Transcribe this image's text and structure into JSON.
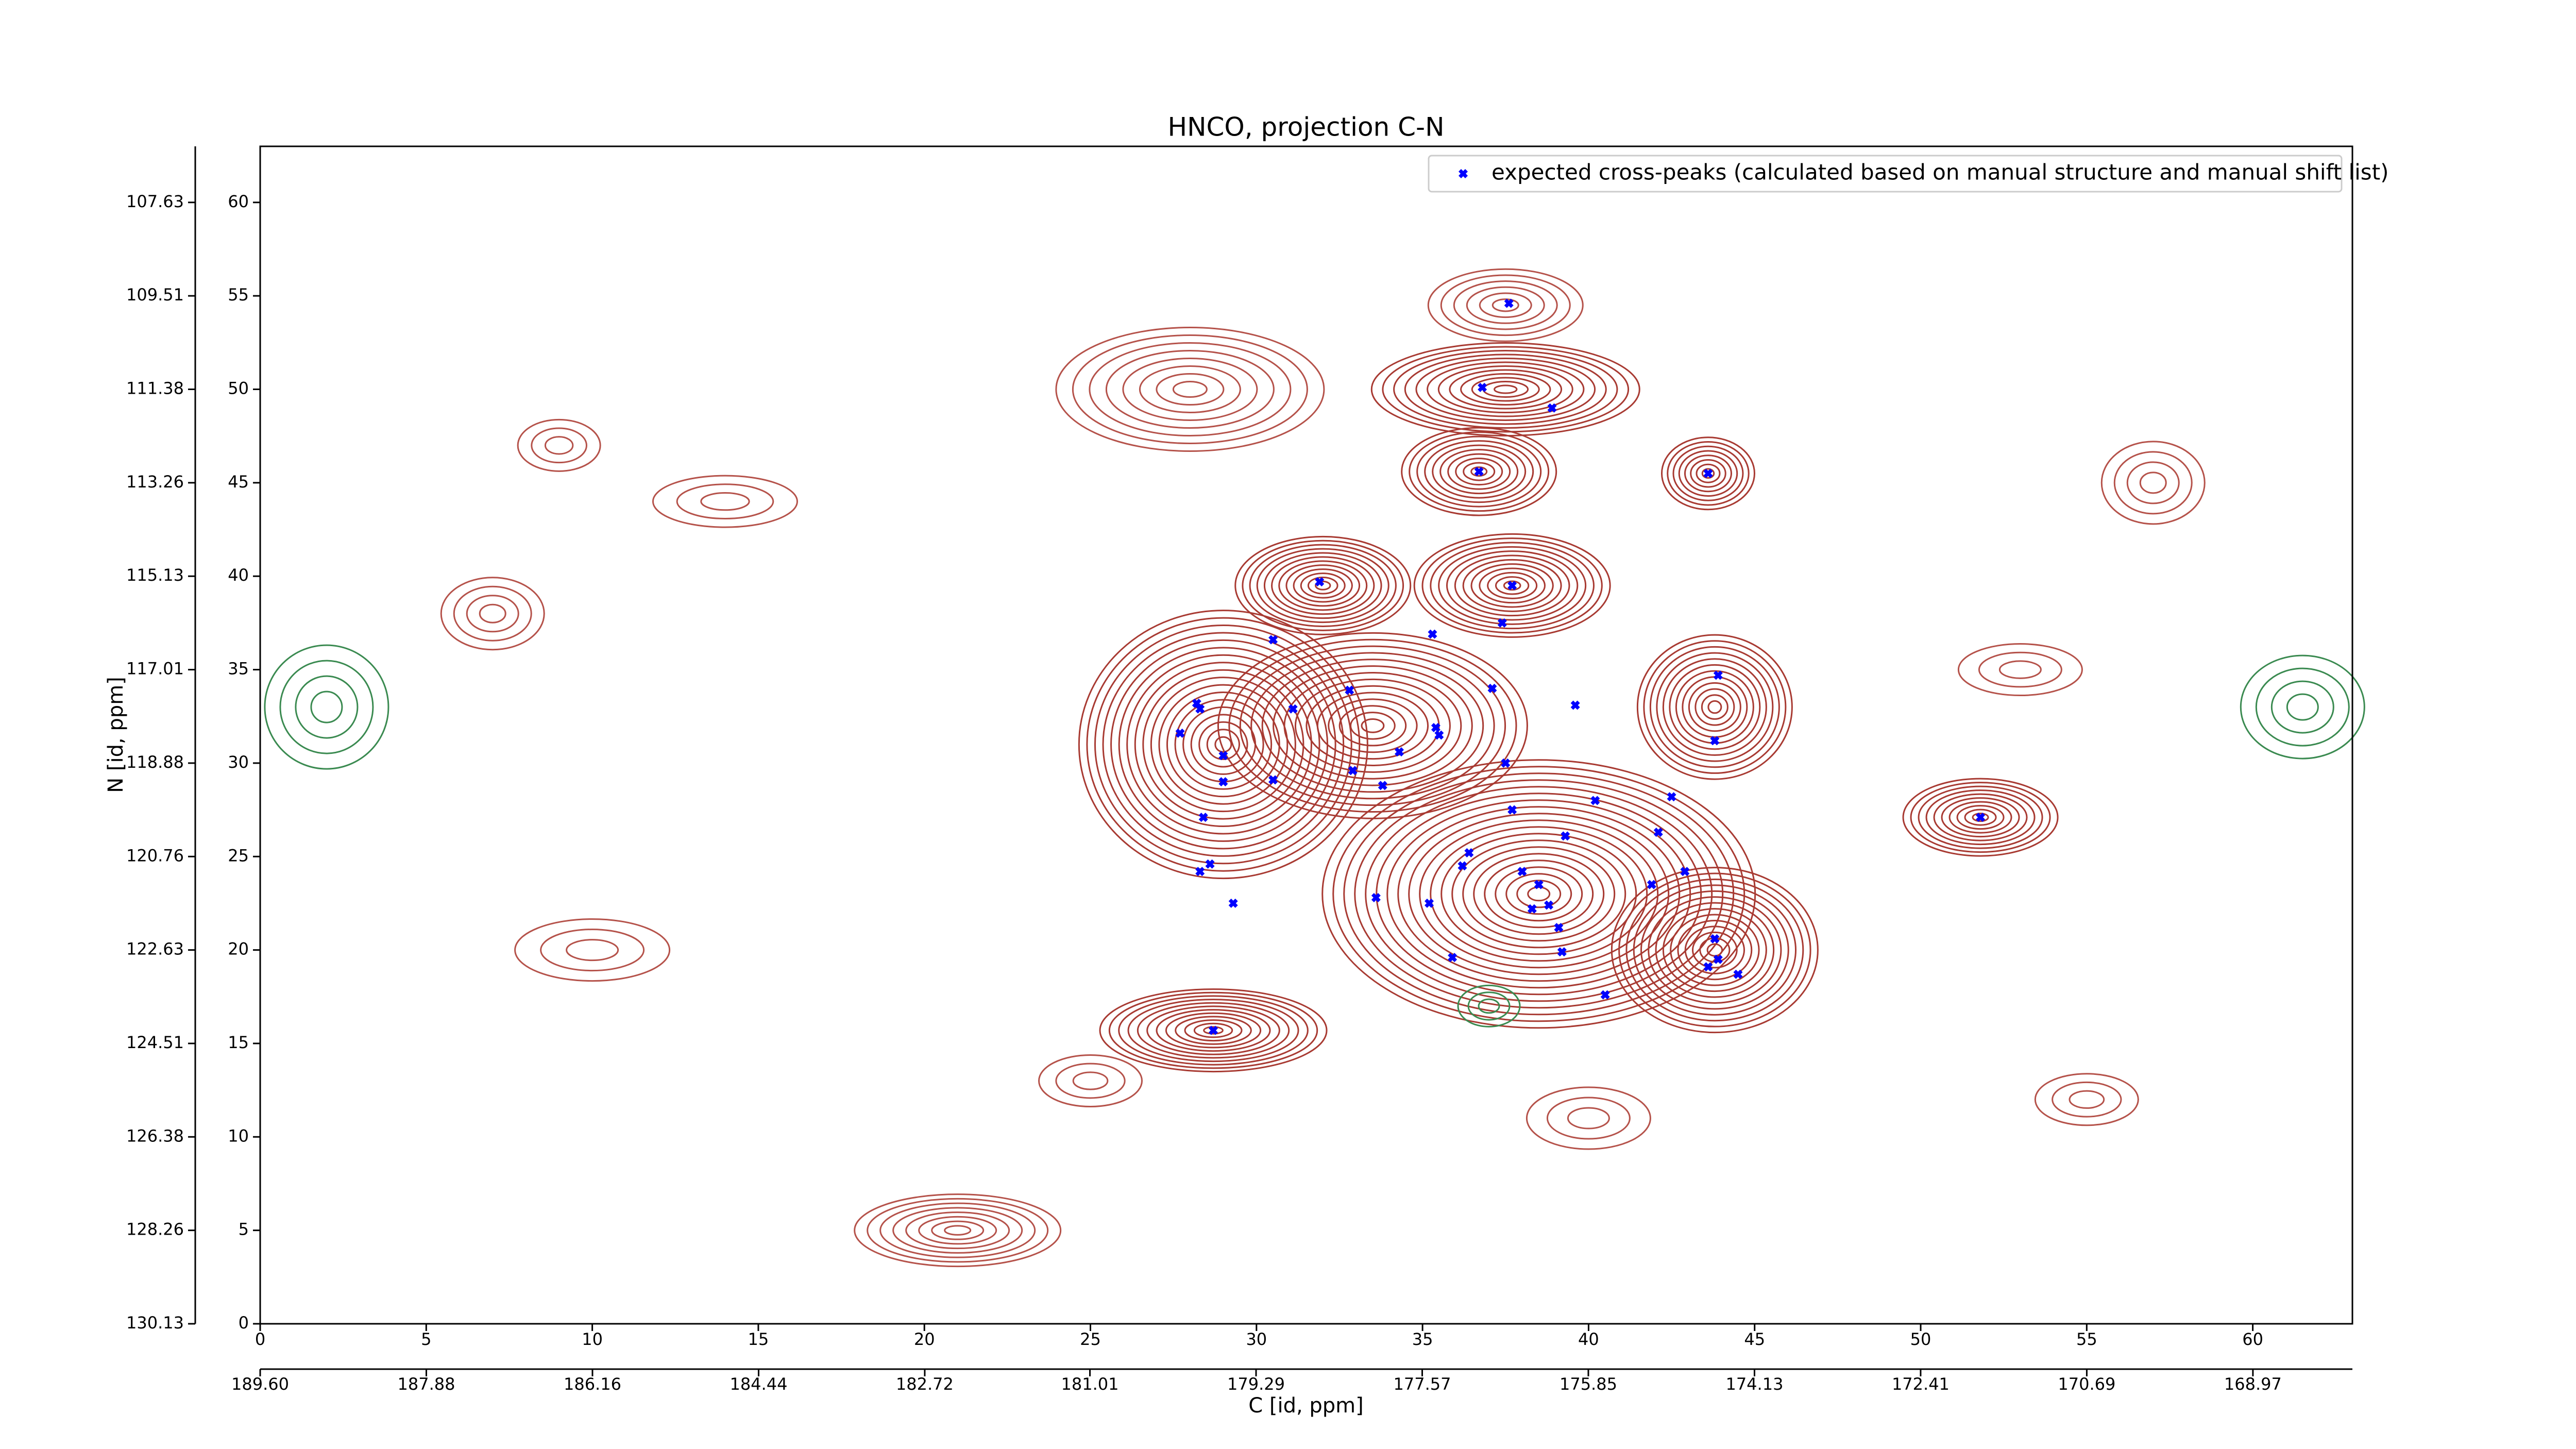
{
  "chart_data": {
    "type": "scatter",
    "title": "HNCO, projection C-N",
    "xlabel": "C [id, ppm]",
    "ylabel": "N [id, ppm]",
    "xlim": [
      0,
      63
    ],
    "ylim": [
      0,
      63
    ],
    "xticks": [
      0,
      5,
      10,
      15,
      20,
      25,
      30,
      35,
      40,
      45,
      50,
      55,
      60
    ],
    "yticks": [
      0,
      5,
      10,
      15,
      20,
      25,
      30,
      35,
      40,
      45,
      50,
      55,
      60
    ],
    "x2lim": [
      189.6,
      167.94
    ],
    "x2ticks": [
      {
        "value": 189.6,
        "label": "189.60"
      },
      {
        "value": 187.88,
        "label": "187.88"
      },
      {
        "value": 186.16,
        "label": "186.16"
      },
      {
        "value": 184.44,
        "label": "184.44"
      },
      {
        "value": 182.72,
        "label": "182.72"
      },
      {
        "value": 181.01,
        "label": "181.01"
      },
      {
        "value": 179.29,
        "label": "179.29"
      },
      {
        "value": 177.57,
        "label": "177.57"
      },
      {
        "value": 175.85,
        "label": "175.85"
      },
      {
        "value": 174.13,
        "label": "174.13"
      },
      {
        "value": 172.41,
        "label": "172.41"
      },
      {
        "value": 170.69,
        "label": "170.69"
      },
      {
        "value": 168.97,
        "label": "168.97"
      }
    ],
    "y2lim": [
      130.13,
      106.505
    ],
    "y2ticks": [
      {
        "value": 130.13,
        "label": "130.13"
      },
      {
        "value": 128.255,
        "label": "128.26"
      },
      {
        "value": 126.38,
        "label": "126.38"
      },
      {
        "value": 124.505,
        "label": "124.51"
      },
      {
        "value": 122.63,
        "label": "122.63"
      },
      {
        "value": 120.755,
        "label": "120.76"
      },
      {
        "value": 118.88,
        "label": "118.88"
      },
      {
        "value": 117.005,
        "label": "117.01"
      },
      {
        "value": 115.13,
        "label": "115.13"
      },
      {
        "value": 113.255,
        "label": "113.26"
      },
      {
        "value": 111.38,
        "label": "111.38"
      },
      {
        "value": 109.505,
        "label": "109.51"
      },
      {
        "value": 107.63,
        "label": "107.63"
      }
    ],
    "legend": "upper right",
    "series": [
      {
        "name": "expected cross-peaks (calculated based on manual structure and manual shift list)",
        "color": "#0000ff",
        "x": [
          37.6,
          36.8,
          38.9,
          36.7,
          43.6,
          31.9,
          37.7,
          37.4,
          30.5,
          35.3,
          43.9,
          37.1,
          32.8,
          28.2,
          28.3,
          31.1,
          39.6,
          35.4,
          35.5,
          27.7,
          43.8,
          34.3,
          29.0,
          37.5,
          32.9,
          29.0,
          30.5,
          33.8,
          40.2,
          42.5,
          37.7,
          28.4,
          51.8,
          39.3,
          42.1,
          36.4,
          36.2,
          28.6,
          28.3,
          38.0,
          42.9,
          38.5,
          41.9,
          33.6,
          29.3,
          35.2,
          38.8,
          38.3,
          39.1,
          43.8,
          43.9,
          43.6,
          44.5,
          35.9,
          39.2,
          40.5,
          28.7
        ],
        "values": [
          54.6,
          50.1,
          49.0,
          45.6,
          45.5,
          39.7,
          39.5,
          37.5,
          36.6,
          36.9,
          34.7,
          34.0,
          33.9,
          33.2,
          32.9,
          32.9,
          33.1,
          31.9,
          31.5,
          31.6,
          31.2,
          30.6,
          30.4,
          30.0,
          29.6,
          29.0,
          29.1,
          28.8,
          28.0,
          28.2,
          27.5,
          27.1,
          27.1,
          26.1,
          26.3,
          25.2,
          24.5,
          24.6,
          24.2,
          24.2,
          24.2,
          23.5,
          23.5,
          22.8,
          22.5,
          22.5,
          22.4,
          22.2,
          21.2,
          20.6,
          19.5,
          19.1,
          18.7,
          19.6,
          19.9,
          17.6,
          15.7
        ]
      }
    ]
  }
}
